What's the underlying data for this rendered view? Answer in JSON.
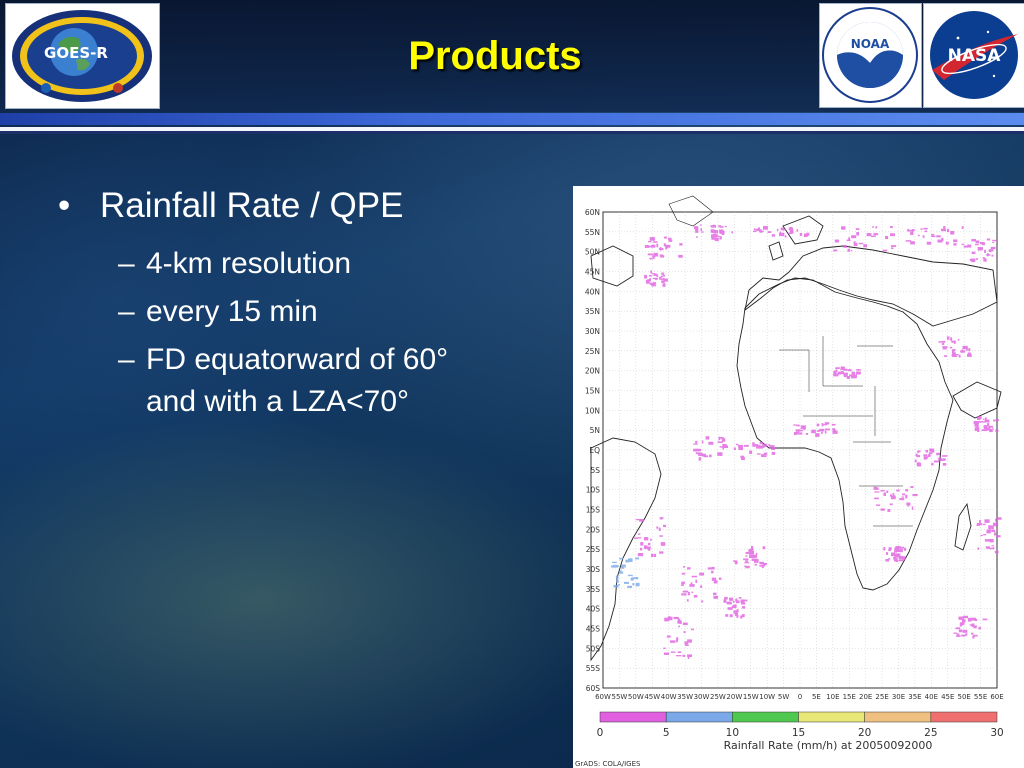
{
  "slide": {
    "title": "Products",
    "bullets": {
      "main": "Rainfall Rate / QPE",
      "subs": [
        "4-km resolution",
        "every 15 min",
        "FD equatorward of 60°",
        "and with a LZA<70°"
      ]
    }
  },
  "logos": {
    "goes": {
      "label": "GOES-R"
    },
    "noaa": {
      "label": "NOAA"
    },
    "nasa": {
      "label": "NASA"
    }
  },
  "map": {
    "lat_labels": [
      "60N",
      "55N",
      "50N",
      "45N",
      "40N",
      "35N",
      "30N",
      "25N",
      "20N",
      "15N",
      "10N",
      "5N",
      "EQ",
      "5S",
      "10S",
      "15S",
      "20S",
      "25S",
      "30S",
      "35S",
      "40S",
      "45S",
      "50S",
      "55S",
      "60S"
    ],
    "lon_labels": [
      "60W",
      "55W",
      "50W",
      "45W",
      "40W",
      "35W",
      "30W",
      "25W",
      "20W",
      "15W",
      "10W",
      "5W",
      "0",
      "5E",
      "10E",
      "15E",
      "20E",
      "25E",
      "30E",
      "35E",
      "40E",
      "45E",
      "50E",
      "55E",
      "60E"
    ],
    "colorbar": {
      "ticks": [
        "0",
        "5",
        "10",
        "15",
        "20",
        "25",
        "30"
      ],
      "colors": [
        "#e060e0",
        "#7aa8e8",
        "#4ec84e",
        "#e8e878",
        "#f0c080",
        "#f07070"
      ],
      "caption": "Rainfall Rate (mm/h) at 20050092000"
    },
    "credit": "GrADS: COLA/IGES"
  }
}
